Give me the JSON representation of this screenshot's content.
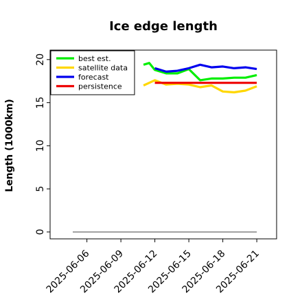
{
  "chart_data": {
    "type": "line",
    "title": "Ice edge length",
    "ylabel": "Length (1000km)",
    "xlabel": "",
    "ylim": [
      -0.8,
      21.1
    ],
    "xlim": [
      "2025-06-02T18:00",
      "2025-06-22T18:00"
    ],
    "yticks": [
      0,
      5,
      10,
      15,
      20
    ],
    "xticks": [
      "2025-06-06",
      "2025-06-09",
      "2025-06-12",
      "2025-06-15",
      "2025-06-18",
      "2025-06-21"
    ],
    "highlight_tick": "2025-06-12",
    "highlight_color": "#228B22",
    "legend": {
      "position": "top-left"
    },
    "series": [
      {
        "name": "best est.",
        "color": "#00ee00",
        "points": [
          [
            "2025-06-11",
            19.4
          ],
          [
            "2025-06-11T12:00",
            19.6
          ],
          [
            "2025-06-12",
            18.8
          ],
          [
            "2025-06-13",
            18.4
          ],
          [
            "2025-06-14",
            18.4
          ],
          [
            "2025-06-15",
            18.9
          ],
          [
            "2025-06-16",
            17.6
          ],
          [
            "2025-06-17",
            17.8
          ],
          [
            "2025-06-18",
            17.8
          ],
          [
            "2025-06-19",
            17.9
          ],
          [
            "2025-06-20",
            17.9
          ],
          [
            "2025-06-21",
            18.2
          ]
        ]
      },
      {
        "name": "satellite data",
        "color": "#ffd700",
        "points": [
          [
            "2025-06-11",
            17.0
          ],
          [
            "2025-06-11T12:00",
            17.3
          ],
          [
            "2025-06-12",
            17.6
          ],
          [
            "2025-06-13",
            17.1
          ],
          [
            "2025-06-14",
            17.2
          ],
          [
            "2025-06-15",
            17.1
          ],
          [
            "2025-06-16",
            16.8
          ],
          [
            "2025-06-17",
            17.0
          ],
          [
            "2025-06-18",
            16.3
          ],
          [
            "2025-06-19",
            16.2
          ],
          [
            "2025-06-20",
            16.4
          ],
          [
            "2025-06-21",
            16.9
          ]
        ]
      },
      {
        "name": "forecast",
        "color": "#0000ee",
        "points": [
          [
            "2025-06-12",
            19.0
          ],
          [
            "2025-06-13",
            18.6
          ],
          [
            "2025-06-14",
            18.7
          ],
          [
            "2025-06-15",
            19.0
          ],
          [
            "2025-06-16",
            19.4
          ],
          [
            "2025-06-17",
            19.1
          ],
          [
            "2025-06-18",
            19.2
          ],
          [
            "2025-06-19",
            19.0
          ],
          [
            "2025-06-20",
            19.1
          ],
          [
            "2025-06-21",
            18.9
          ]
        ]
      },
      {
        "name": "persistence",
        "color": "#ee0000",
        "points": [
          [
            "2025-06-12",
            17.3
          ],
          [
            "2025-06-21",
            17.3
          ]
        ]
      }
    ],
    "reference_line": {
      "color": "#808080",
      "y": 0,
      "x": [
        "2025-06-04T18:00",
        "2025-06-21"
      ]
    }
  }
}
